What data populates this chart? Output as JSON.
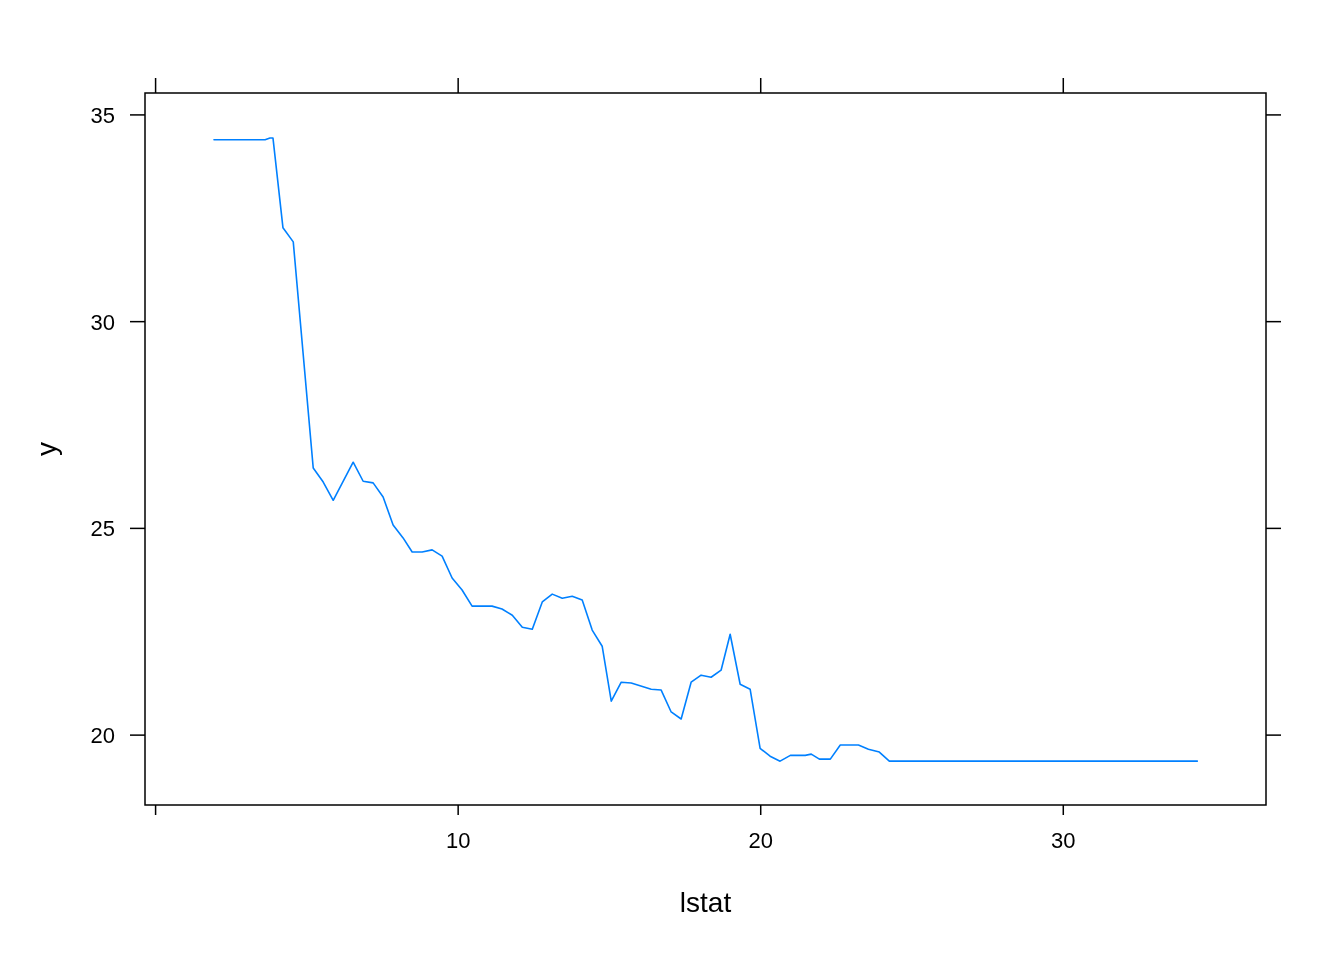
{
  "chart_data": {
    "type": "line",
    "xlabel": "lstat",
    "ylabel": "y",
    "x": [
      1.93,
      3.62,
      3.78,
      3.88,
      4.21,
      4.55,
      5.21,
      5.54,
      5.87,
      6.53,
      6.86,
      7.19,
      7.52,
      7.85,
      8.18,
      8.48,
      8.81,
      9.14,
      9.47,
      9.8,
      10.13,
      10.46,
      11.12,
      11.45,
      11.79,
      12.12,
      12.45,
      12.78,
      13.11,
      13.44,
      13.77,
      14.1,
      14.43,
      14.76,
      15.06,
      15.39,
      15.72,
      16.38,
      16.71,
      17.04,
      17.37,
      17.7,
      18.03,
      18.36,
      18.69,
      18.99,
      19.32,
      19.65,
      19.98,
      20.31,
      20.64,
      20.98,
      21.47,
      21.67,
      21.94,
      22.3,
      22.63,
      23.23,
      23.56,
      23.92,
      24.25,
      34.43
    ],
    "series": [
      {
        "color": "#0080ff",
        "values": [
          34.4,
          34.4,
          34.44,
          34.44,
          32.27,
          31.93,
          26.46,
          26.12,
          25.68,
          26.6,
          26.14,
          26.1,
          25.76,
          25.08,
          24.77,
          24.43,
          24.43,
          24.48,
          24.33,
          23.8,
          23.51,
          23.12,
          23.12,
          23.05,
          22.9,
          22.61,
          22.56,
          23.22,
          23.41,
          23.31,
          23.36,
          23.27,
          22.54,
          22.15,
          20.82,
          21.28,
          21.26,
          21.11,
          21.09,
          20.56,
          20.39,
          21.28,
          21.45,
          21.4,
          21.57,
          22.44,
          21.23,
          21.11,
          19.68,
          19.49,
          19.37,
          19.51,
          19.51,
          19.54,
          19.42,
          19.42,
          19.76,
          19.76,
          19.66,
          19.59,
          19.37,
          19.37
        ]
      }
    ],
    "xlim": [
      -0.35,
      36.7
    ],
    "ylim": [
      18.31,
      35.53
    ],
    "xticks": [
      {
        "value": 0,
        "label": null
      },
      10,
      20,
      30
    ],
    "yticks": [
      20,
      25,
      30,
      35
    ],
    "grid": false,
    "marker": "none",
    "line_style": "solid"
  }
}
